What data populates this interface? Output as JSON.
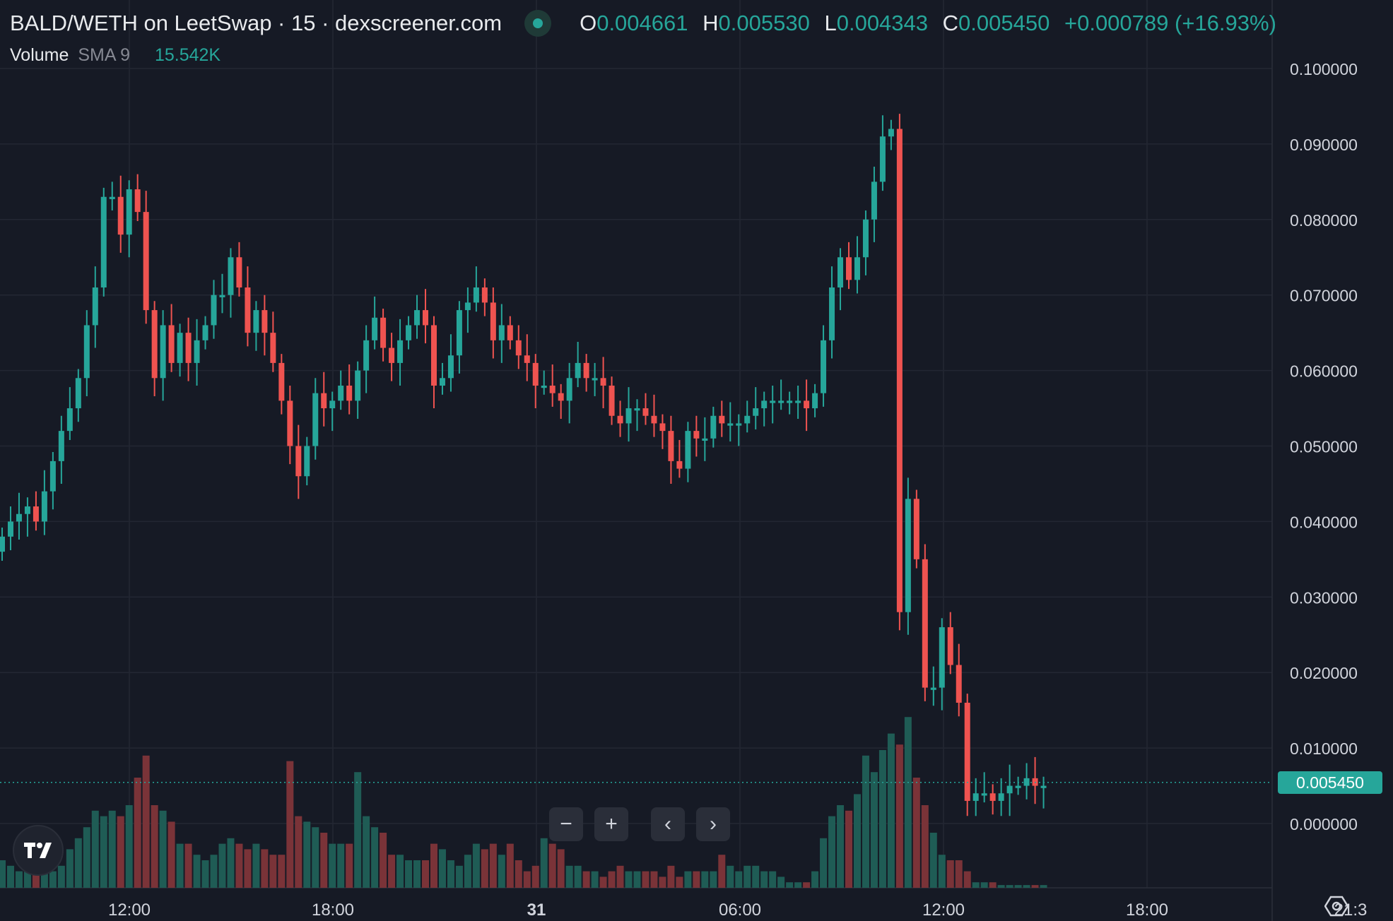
{
  "header": {
    "title": "BALD/WETH on LeetSwap · 15 · dexscreener.com",
    "ohlc": {
      "o_label": "O",
      "o_value": "0.004661",
      "h_label": "H",
      "h_value": "0.005530",
      "l_label": "L",
      "l_value": "0.004343",
      "c_label": "C",
      "c_value": "0.005450",
      "change": "+0.000789 (+16.93%)"
    }
  },
  "volume_legend": {
    "label": "Volume",
    "sma": "SMA 9",
    "value": "15.542K"
  },
  "last_price": "0.005450",
  "controls": {
    "zoom_out": "−",
    "zoom_in": "+",
    "scroll_left": "‹",
    "scroll_right": "›"
  },
  "colors": {
    "up": "#26a69a",
    "down": "#ef5350",
    "background": "#161a25",
    "grid": "#232733",
    "text": "#d1d4dc"
  },
  "chart_data": {
    "type": "candlestick",
    "pair": "BALD/WETH",
    "interval_minutes": 15,
    "y_ticks": [
      "0.100000",
      "0.090000",
      "0.080000",
      "0.070000",
      "0.060000",
      "0.050000",
      "0.040000",
      "0.030000",
      "0.020000",
      "0.010000",
      "0.000000"
    ],
    "x_ticks": [
      "12:00",
      "18:00",
      "31",
      "06:00",
      "12:00",
      "18:00",
      "21:3"
    ],
    "ylim": [
      0,
      0.1
    ],
    "grid": true,
    "closes": [
      0.038,
      0.04,
      0.041,
      0.042,
      0.04,
      0.044,
      0.048,
      0.052,
      0.055,
      0.059,
      0.066,
      0.071,
      0.083,
      0.083,
      0.078,
      0.084,
      0.081,
      0.068,
      0.059,
      0.066,
      0.061,
      0.065,
      0.061,
      0.064,
      0.066,
      0.07,
      0.07,
      0.075,
      0.071,
      0.065,
      0.068,
      0.065,
      0.061,
      0.056,
      0.05,
      0.046,
      0.05,
      0.057,
      0.055,
      0.056,
      0.058,
      0.056,
      0.06,
      0.064,
      0.067,
      0.063,
      0.061,
      0.064,
      0.066,
      0.068,
      0.066,
      0.058,
      0.059,
      0.062,
      0.068,
      0.069,
      0.071,
      0.069,
      0.064,
      0.066,
      0.064,
      0.062,
      0.061,
      0.058,
      0.058,
      0.057,
      0.056,
      0.059,
      0.061,
      0.059,
      0.059,
      0.058,
      0.054,
      0.053,
      0.055,
      0.055,
      0.054,
      0.053,
      0.052,
      0.048,
      0.047,
      0.052,
      0.051,
      0.051,
      0.054,
      0.053,
      0.053,
      0.053,
      0.054,
      0.055,
      0.056,
      0.056,
      0.056,
      0.056,
      0.056,
      0.055,
      0.057,
      0.064,
      0.071,
      0.075,
      0.072,
      0.075,
      0.08,
      0.085,
      0.091,
      0.092,
      0.028,
      0.043,
      0.035,
      0.018,
      0.018,
      0.026,
      0.021,
      0.016,
      0.003,
      0.004,
      0.004,
      0.003,
      0.004,
      0.005,
      0.005,
      0.006,
      0.005,
      0.005
    ],
    "volumes": [
      0.5,
      0.4,
      0.3,
      0.4,
      0.3,
      0.3,
      0.3,
      0.4,
      0.7,
      0.9,
      1.1,
      1.4,
      1.3,
      1.4,
      1.3,
      1.5,
      2.0,
      2.4,
      1.5,
      1.4,
      1.2,
      0.8,
      0.8,
      0.6,
      0.5,
      0.6,
      0.8,
      0.9,
      0.8,
      0.7,
      0.8,
      0.7,
      0.6,
      0.6,
      2.3,
      1.3,
      1.2,
      1.1,
      1.0,
      0.8,
      0.8,
      0.8,
      2.1,
      1.3,
      1.1,
      1.0,
      0.6,
      0.6,
      0.5,
      0.5,
      0.5,
      0.8,
      0.7,
      0.5,
      0.4,
      0.6,
      0.8,
      0.7,
      0.8,
      0.6,
      0.8,
      0.5,
      0.3,
      0.4,
      0.9,
      0.8,
      0.7,
      0.4,
      0.4,
      0.3,
      0.3,
      0.2,
      0.3,
      0.4,
      0.3,
      0.3,
      0.3,
      0.3,
      0.2,
      0.4,
      0.2,
      0.3,
      0.3,
      0.3,
      0.3,
      0.6,
      0.4,
      0.3,
      0.4,
      0.4,
      0.3,
      0.3,
      0.2,
      0.1,
      0.1,
      0.1,
      0.3,
      0.9,
      1.3,
      1.5,
      1.4,
      1.7,
      2.4,
      2.1,
      2.5,
      2.8,
      2.6,
      3.1,
      2.0,
      1.5,
      1.0,
      0.6,
      0.5,
      0.5,
      0.3,
      0.1,
      0.1,
      0.1,
      0.05,
      0.05,
      0.05,
      0.05,
      0.05,
      0.05
    ]
  }
}
